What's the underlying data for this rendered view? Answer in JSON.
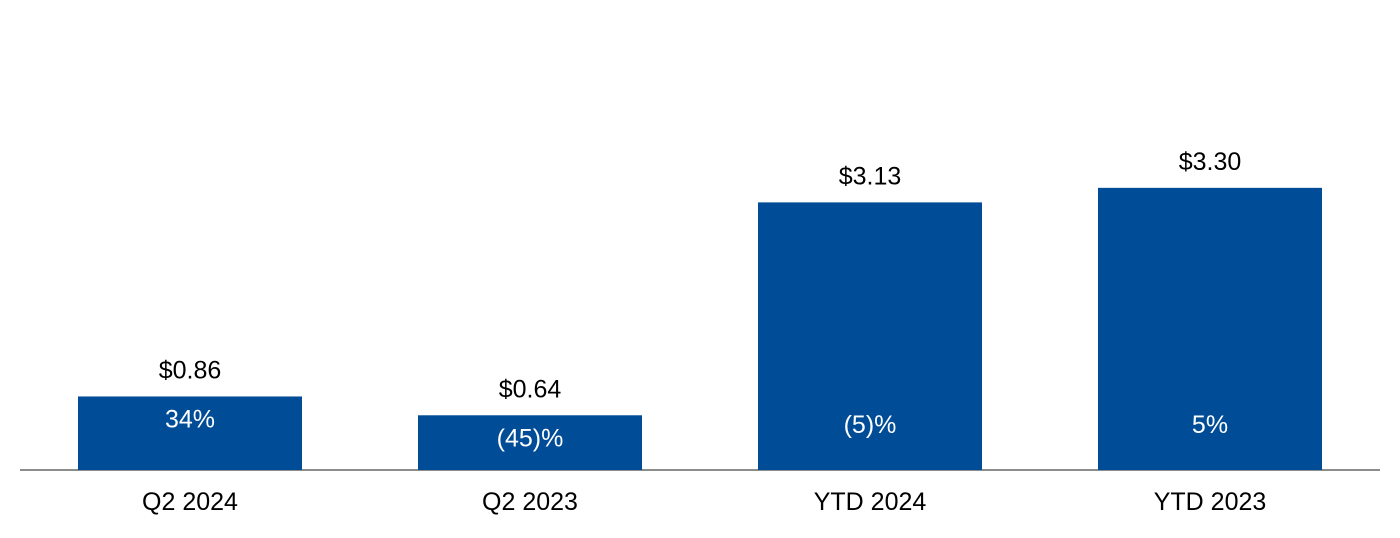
{
  "chart_data": {
    "type": "bar",
    "title": "",
    "xlabel": "",
    "ylabel": "",
    "categories": [
      "Q2 2024",
      "Q2 2023",
      "YTD 2024",
      "YTD 2023"
    ],
    "values": [
      0.86,
      0.64,
      3.13,
      3.3
    ],
    "value_labels": [
      "$0.86",
      "$0.64",
      "$3.13",
      "$3.30"
    ],
    "change_labels": [
      "34%",
      "(45)%",
      "(5)%",
      "5%"
    ],
    "ylim": [
      0,
      4.3
    ],
    "grid": false,
    "bar_color": "#004C97",
    "axis_color": "#8C8C8C"
  }
}
